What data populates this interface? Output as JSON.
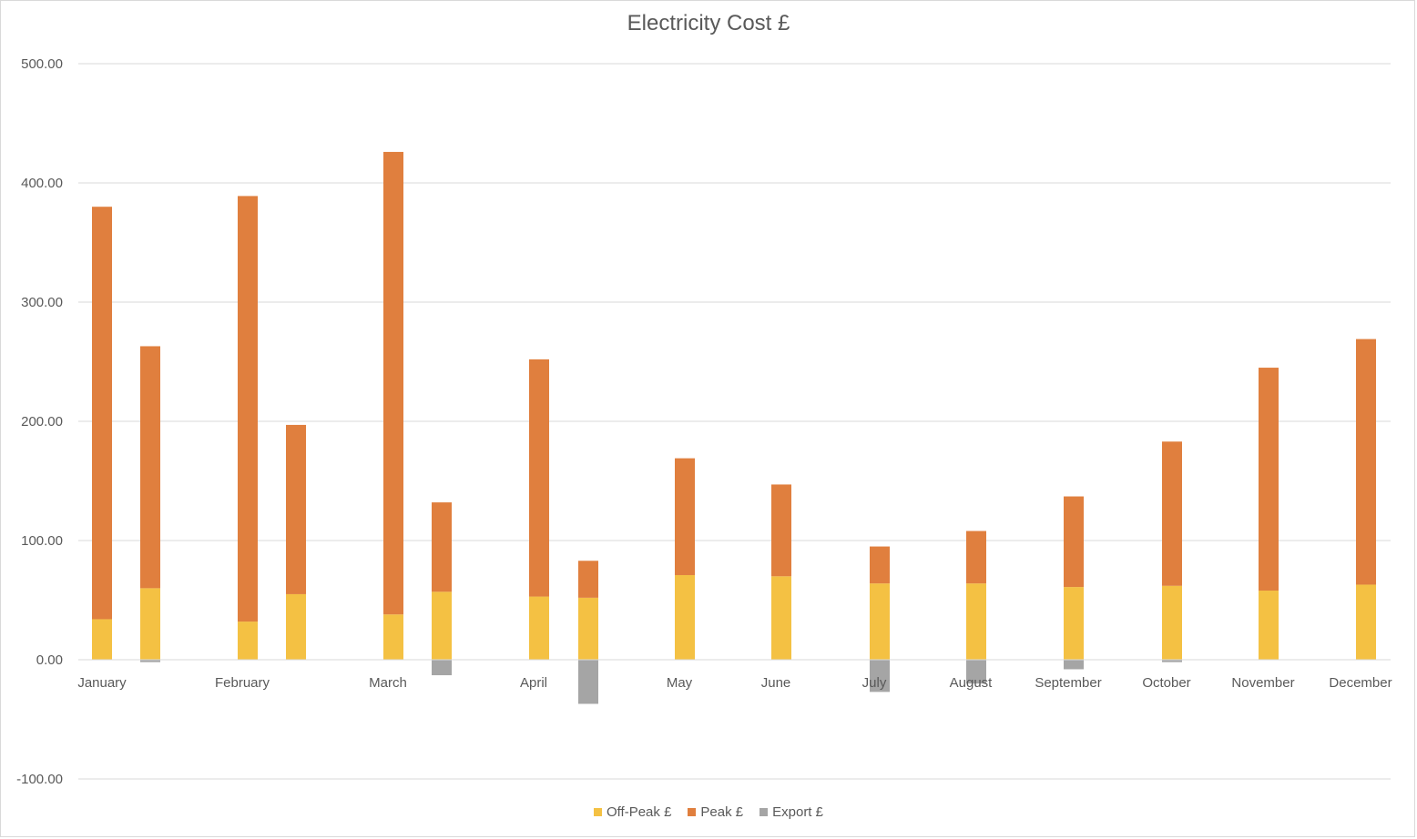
{
  "chart_data": {
    "type": "bar",
    "stacked": true,
    "title": "Electricity Cost £",
    "xlabel": "",
    "ylabel": "",
    "ylim": [
      -100,
      500
    ],
    "yticks": [
      "500.00",
      "400.00",
      "300.00",
      "200.00",
      "100.00",
      "0.00",
      "-100.00"
    ],
    "ytick_values": [
      500,
      400,
      300,
      200,
      100,
      0,
      -100
    ],
    "grid": true,
    "legend_position": "bottom",
    "category_labels": [
      "January",
      "February",
      "March",
      "April",
      "May",
      "June",
      "July",
      "August",
      "September",
      "October",
      "November",
      "December"
    ],
    "bars": [
      {
        "group": "January",
        "offpeak": 34,
        "peak": 346,
        "export": 0
      },
      {
        "group": "January",
        "offpeak": 60,
        "peak": 203,
        "export": -2
      },
      {
        "group": "February",
        "offpeak": 32,
        "peak": 357,
        "export": 0
      },
      {
        "group": "February",
        "offpeak": 55,
        "peak": 142,
        "export": 0
      },
      {
        "group": "March",
        "offpeak": 38,
        "peak": 388,
        "export": 0
      },
      {
        "group": "March",
        "offpeak": 57,
        "peak": 75,
        "export": -13
      },
      {
        "group": "April",
        "offpeak": 53,
        "peak": 199,
        "export": 0
      },
      {
        "group": "April",
        "offpeak": 52,
        "peak": 31,
        "export": -37
      },
      {
        "group": "May",
        "offpeak": 71,
        "peak": 98,
        "export": 0
      },
      {
        "group": "June",
        "offpeak": 70,
        "peak": 77,
        "export": 0
      },
      {
        "group": "July",
        "offpeak": 64,
        "peak": 31,
        "export": -27
      },
      {
        "group": "August",
        "offpeak": 64,
        "peak": 44,
        "export": -20
      },
      {
        "group": "September",
        "offpeak": 61,
        "peak": 76,
        "export": -8
      },
      {
        "group": "October",
        "offpeak": 62,
        "peak": 121,
        "export": -2
      },
      {
        "group": "November",
        "offpeak": 58,
        "peak": 187,
        "export": 0
      },
      {
        "group": "December",
        "offpeak": 63,
        "peak": 206,
        "export": 0
      }
    ],
    "series": [
      {
        "name": "Off-Peak £",
        "key": "offpeak",
        "color": "#f4c143"
      },
      {
        "name": "Peak £",
        "key": "peak",
        "color": "#e07f3e"
      },
      {
        "name": "Export £",
        "key": "export",
        "color": "#a5a5a5"
      }
    ]
  }
}
